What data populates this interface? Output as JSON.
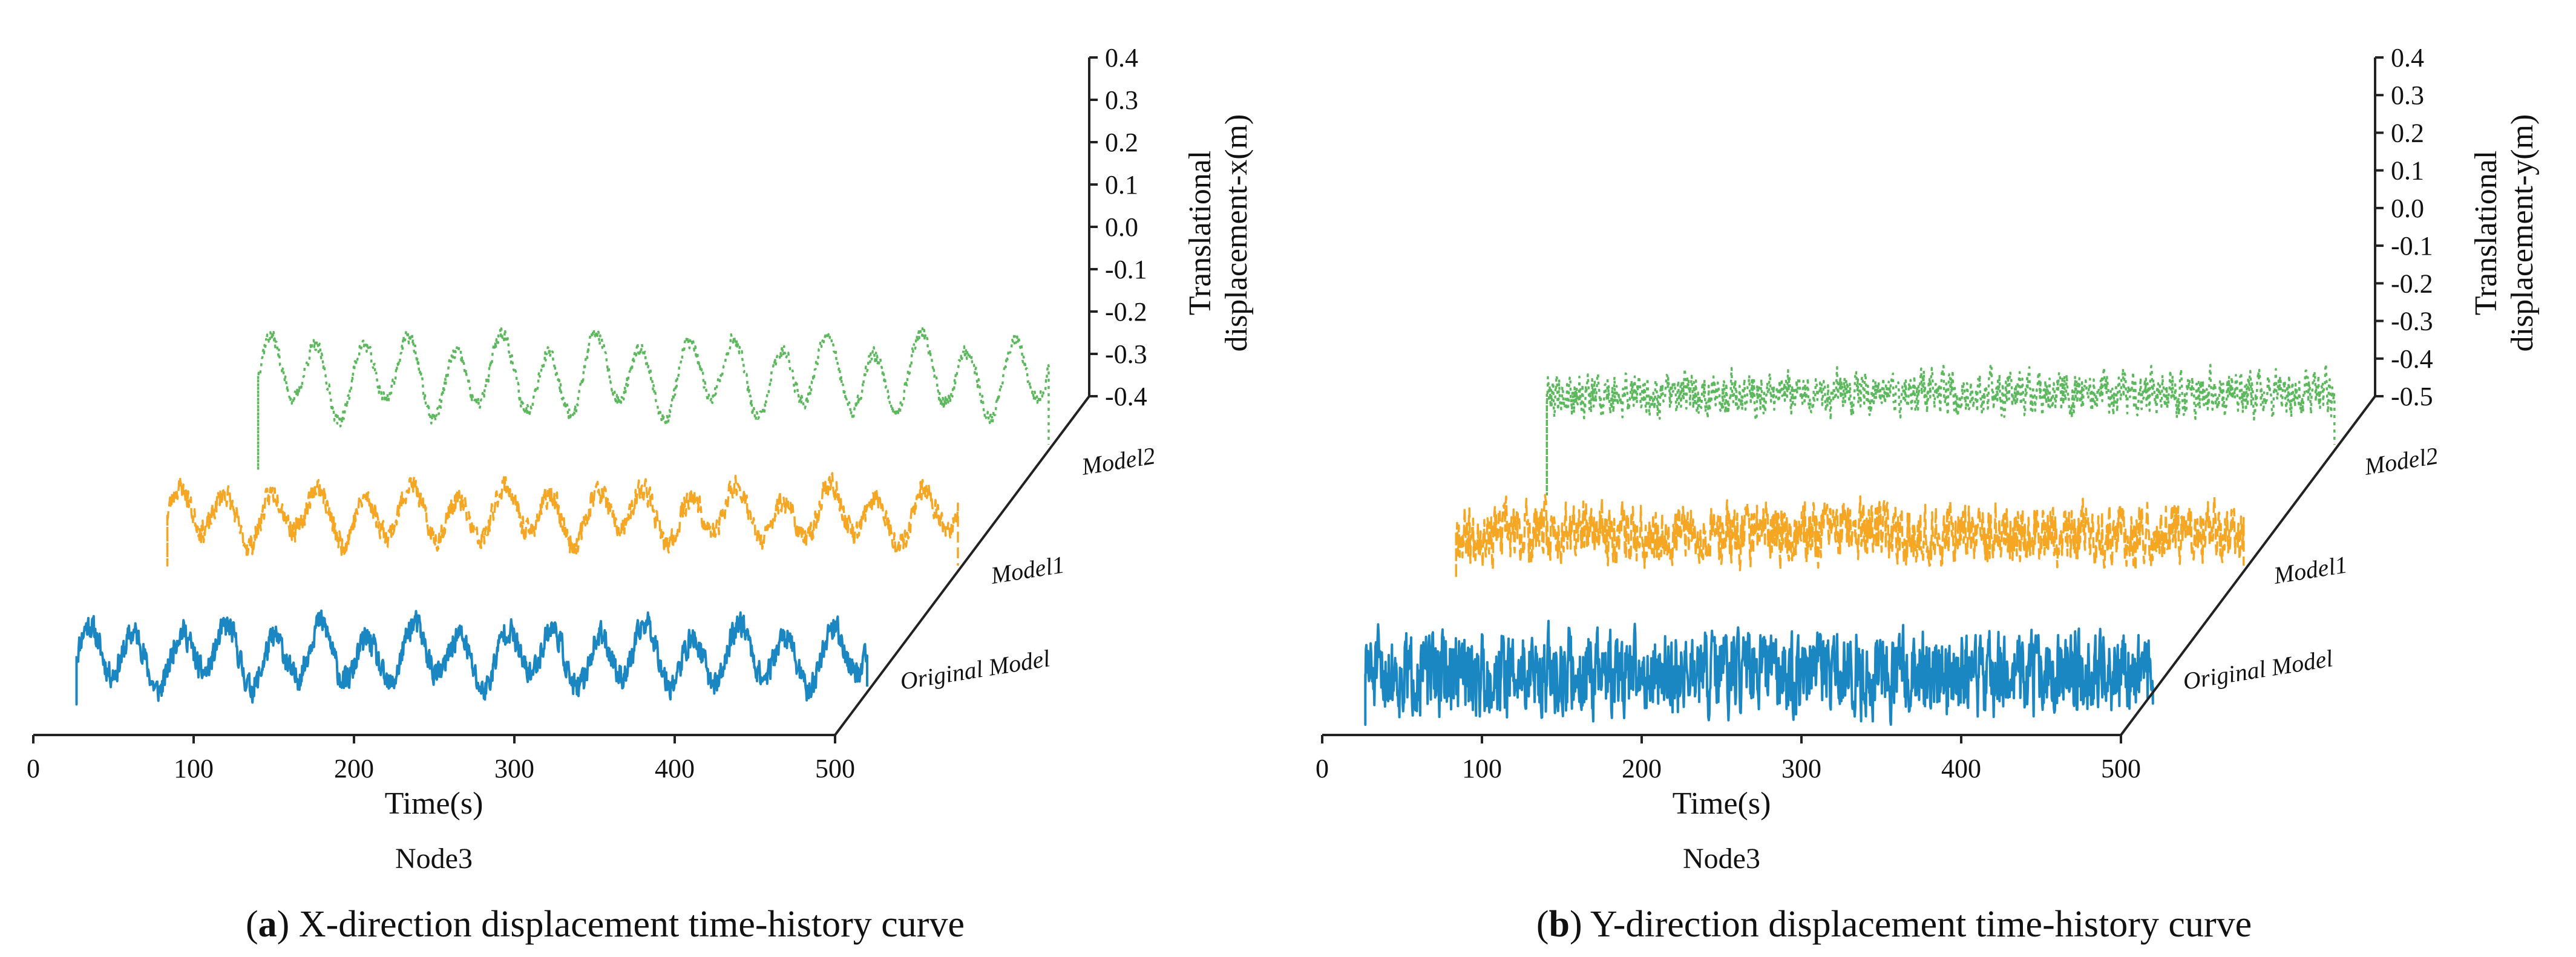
{
  "colors": {
    "original": "#1a86c2",
    "model1": "#f5a623",
    "model2": "#5cb85c",
    "axis": "#222222"
  },
  "chart_data": [
    {
      "type": "line",
      "title": "",
      "node_label": "Node3",
      "caption_letter": "a",
      "caption_text": " X-direction displacement time-history curve",
      "xlabel": "Time(s)",
      "ylabel_line1": "Translational",
      "ylabel_line2": "displacement-x(m)",
      "xlim": [
        0,
        500
      ],
      "ylim": [
        -0.4,
        0.4
      ],
      "x_ticks": [
        "0",
        "100",
        "200",
        "300",
        "400",
        "500"
      ],
      "y_ticks": [
        "-0.4",
        "-0.3",
        "-0.2",
        "-0.1",
        "0.0",
        "0.1",
        "0.2",
        "0.3",
        "0.4"
      ],
      "depth_labels": [
        "Original Model",
        "Model1",
        "Model2"
      ],
      "series": [
        {
          "name": "Original Model",
          "style": "solid",
          "t_start": 27,
          "t_end": 520,
          "mean": -0.13,
          "wave_amp": 0.1,
          "period": 29,
          "noise": 0.045,
          "spike_start": -0.32,
          "seed": 11
        },
        {
          "name": "Model1",
          "style": "dashed",
          "t_start": 27,
          "t_end": 520,
          "mean": -0.05,
          "wave_amp": 0.09,
          "period": 29,
          "noise": 0.04,
          "spike_start": -0.25,
          "seed": 23
        },
        {
          "name": "Model2",
          "style": "dotted",
          "t_start": 27,
          "t_end": 520,
          "mean": 0.02,
          "wave_amp": 0.13,
          "period": 29,
          "noise": 0.025,
          "spike_start": -0.35,
          "seed": 37
        }
      ]
    },
    {
      "type": "line",
      "title": "",
      "node_label": "Node3",
      "caption_letter": "b",
      "caption_text": " Y-direction displacement time-history curve",
      "xlabel": "Time(s)",
      "ylabel_line1": "Translational",
      "ylabel_line2": "displacement-y(m)",
      "xlim": [
        0,
        500
      ],
      "ylim": [
        -0.5,
        0.4
      ],
      "x_ticks": [
        "0",
        "100",
        "200",
        "300",
        "400",
        "500"
      ],
      "y_ticks": [
        "-0.5",
        "-0.4",
        "-0.3",
        "-0.2",
        "-0.1",
        "0.0",
        "0.1",
        "0.2",
        "0.3",
        "0.4"
      ],
      "depth_labels": [
        "Original Model",
        "Model1",
        "Model2"
      ],
      "series": [
        {
          "name": "Original Model",
          "style": "solid",
          "t_start": 27,
          "t_end": 520,
          "mean": -0.2,
          "wave_amp": 0.02,
          "period": 6,
          "noise": 0.14,
          "spike_start": -0.4,
          "seed": 51
        },
        {
          "name": "Model1",
          "style": "dashed",
          "t_start": 27,
          "t_end": 520,
          "mean": -0.12,
          "wave_amp": 0.02,
          "period": 6,
          "noise": 0.1,
          "spike_start": -0.3,
          "seed": 67
        },
        {
          "name": "Model2",
          "style": "dotted",
          "t_start": 27,
          "t_end": 520,
          "mean": -0.05,
          "wave_amp": 0.02,
          "period": 6,
          "noise": 0.07,
          "spike_start": -0.45,
          "seed": 79
        }
      ]
    }
  ]
}
